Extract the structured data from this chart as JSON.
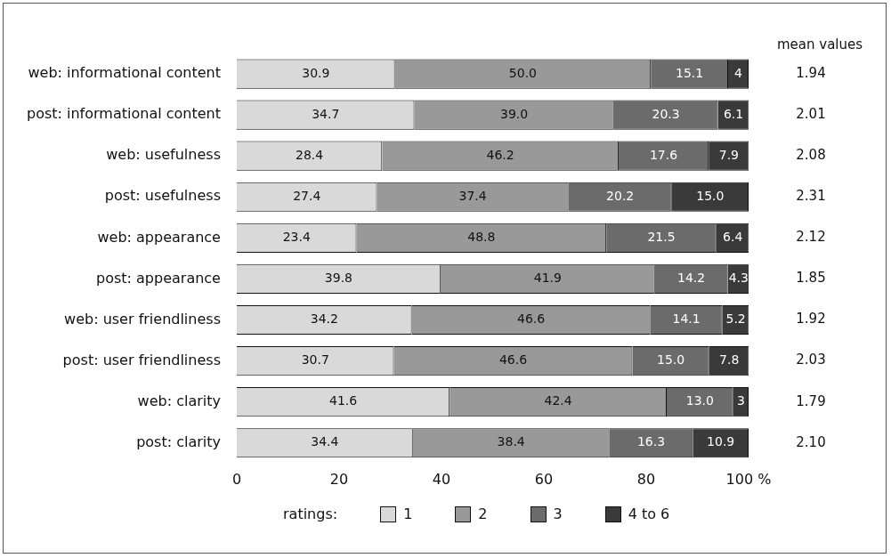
{
  "chart_data": {
    "type": "bar",
    "orientation": "horizontal",
    "stacked": true,
    "categories": [
      "web: informational content",
      "post: informational content",
      "web: usefulness",
      "post: usefulness",
      "web: appearance",
      "post: appearance",
      "web: user friendliness",
      "post: user friendliness",
      "web: clarity",
      "post: clarity"
    ],
    "series": [
      {
        "name": "1",
        "color": "#d9d9d9",
        "values": [
          30.9,
          34.7,
          28.4,
          27.4,
          23.4,
          39.8,
          34.2,
          30.7,
          41.6,
          34.4
        ],
        "value_labels": [
          "30.9",
          "34.7",
          "28.4",
          "27.4",
          "23.4",
          "39.8",
          "34.2",
          "30.7",
          "41.6",
          "34.4"
        ]
      },
      {
        "name": "2",
        "color": "#999999",
        "values": [
          50.0,
          39.0,
          46.2,
          37.4,
          48.8,
          41.9,
          46.6,
          46.6,
          42.4,
          38.4
        ],
        "value_labels": [
          "50.0",
          "39.0",
          "46.2",
          "37.4",
          "48.8",
          "41.9",
          "46.6",
          "46.6",
          "42.4",
          "38.4"
        ]
      },
      {
        "name": "3",
        "color": "#6b6b6b",
        "values": [
          15.1,
          20.3,
          17.6,
          20.2,
          21.5,
          14.2,
          14.1,
          15.0,
          13.0,
          16.3
        ],
        "value_labels": [
          "15.1",
          "20.3",
          "17.6",
          "20.2",
          "21.5",
          "14.2",
          "14.1",
          "15.0",
          "13.0",
          "16.3"
        ]
      },
      {
        "name": "4 to 6",
        "color": "#3a3a3a",
        "values": [
          4,
          6.1,
          7.9,
          15.0,
          6.4,
          4.3,
          5.2,
          7.8,
          3,
          10.9
        ],
        "value_labels": [
          "4",
          "6.1",
          "7.9",
          "15.0",
          "6.4",
          "4.3",
          "5.2",
          "7.8",
          "3",
          "10.9"
        ]
      }
    ],
    "xlim": [
      0,
      100
    ],
    "xticks": [
      0,
      20,
      40,
      60,
      80,
      {
        "value": 100,
        "label": "100 %"
      }
    ],
    "legend": "bottom",
    "legend_title": "ratings:",
    "grid": false,
    "annotations": [
      "mean values",
      "1.94",
      "2.01",
      "2.08",
      "2.31",
      "2.12",
      "1.85",
      "1.92",
      "2.03",
      "1.79",
      "2.10"
    ]
  }
}
